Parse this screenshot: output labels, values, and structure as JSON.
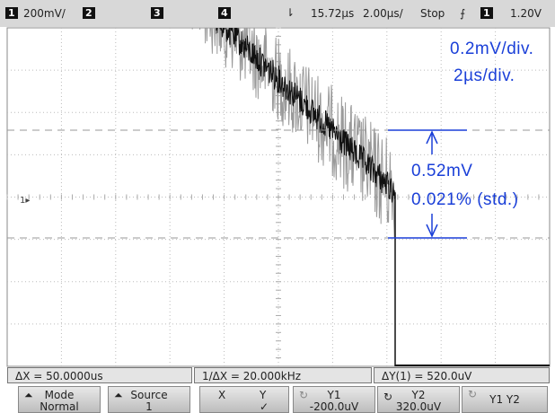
{
  "top_bar": {
    "ch1": "1",
    "ch1_scale": "200mV/",
    "ch2": "2",
    "ch3": "3",
    "ch4": "4",
    "delay": "15.72µs",
    "timebase": "2.00µs/",
    "run_state": "Stop",
    "trig_source": "1",
    "trig_level": "1.20V"
  },
  "annotations": {
    "vertical_scale": "0.2mV/div.",
    "time_scale": "2µs/div.",
    "delta": "0.52mV",
    "ratio": "0.021% (std.)"
  },
  "status": {
    "delta_x": "ΔX = 50.0000us",
    "inv_delta_x": "1/ΔX = 20.000kHz",
    "delta_y": "ΔY(1) = 520.0uV"
  },
  "softkeys": [
    {
      "label": "Mode",
      "value": "Normal"
    },
    {
      "label": "Source",
      "value": "1"
    },
    {
      "label": "X",
      "value": "Y"
    },
    {
      "label": "Y1",
      "value": "-200.0uV"
    },
    {
      "label": "Y2",
      "value": "320.0uV"
    },
    {
      "label": "Y1 Y2"
    }
  ]
}
